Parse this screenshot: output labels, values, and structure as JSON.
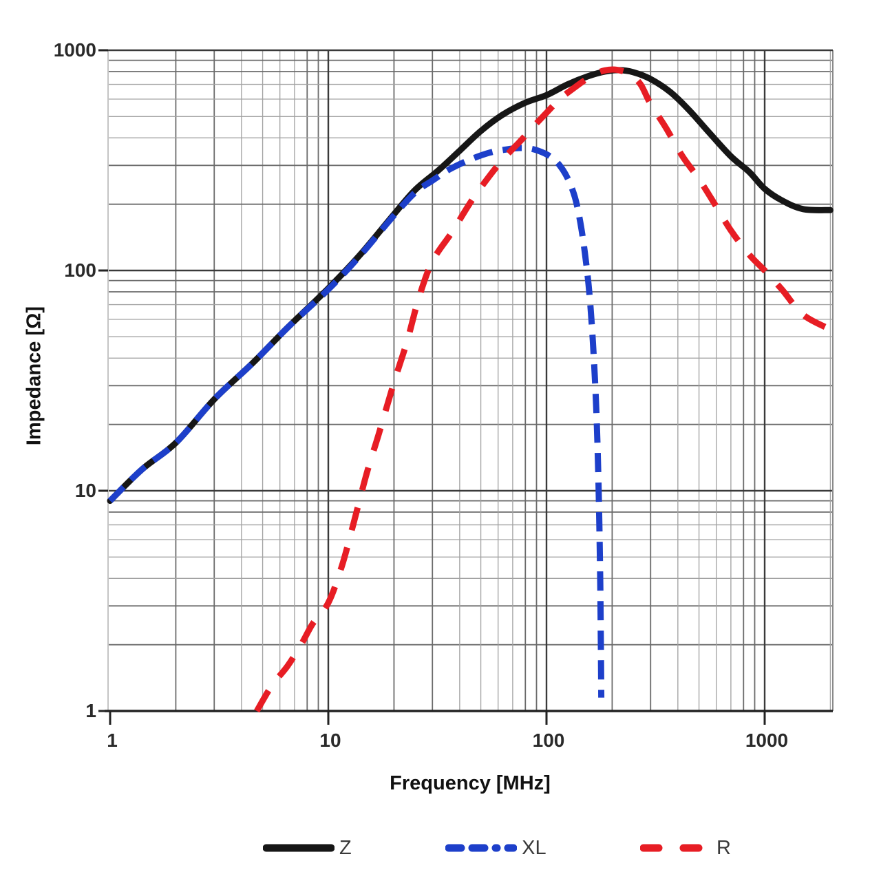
{
  "page": {
    "background": "#ffffff"
  },
  "chart_data": {
    "type": "line",
    "title": "",
    "xlabel": "Frequency [MHz]",
    "ylabel": "Impedance [Ω]",
    "x_scale": "log",
    "y_scale": "log",
    "xlim": [
      1,
      2000
    ],
    "ylim": [
      1,
      1000
    ],
    "grid": {
      "major": true,
      "minor": true
    },
    "legend_position": "bottom",
    "x_ticks": [
      {
        "value": 1,
        "label": "1"
      },
      {
        "value": 10,
        "label": "10"
      },
      {
        "value": 100,
        "label": "100"
      },
      {
        "value": 1000,
        "label": "1000"
      }
    ],
    "y_ticks": [
      {
        "value": 1,
        "label": "1"
      },
      {
        "value": 10,
        "label": "10"
      },
      {
        "value": 100,
        "label": "100"
      },
      {
        "value": 1000,
        "label": "1000"
      }
    ],
    "series": [
      {
        "name": "Z",
        "color": "#161616",
        "line_style": "solid",
        "x": [
          1,
          1.4,
          2,
          3,
          4.5,
          6.5,
          10,
          14,
          20,
          25,
          32,
          40,
          50,
          63,
          80,
          100,
          125,
          155,
          185,
          215,
          250,
          300,
          370,
          450,
          560,
          700,
          850,
          1000,
          1200,
          1500,
          2000
        ],
        "y": [
          9,
          12.5,
          16.5,
          26,
          38,
          55,
          83,
          118,
          180,
          232,
          285,
          350,
          430,
          510,
          578,
          625,
          700,
          762,
          800,
          812,
          795,
          740,
          645,
          535,
          420,
          330,
          280,
          235,
          208,
          190,
          188
        ]
      },
      {
        "name": "XL",
        "color": "#1d3fca",
        "line_style": "dashed",
        "x": [
          1,
          1.4,
          2,
          3,
          4.5,
          6.5,
          10,
          14,
          20,
          25,
          30,
          36,
          45,
          55,
          65,
          75,
          85,
          95,
          105,
          115,
          125,
          135,
          143,
          150,
          157,
          163,
          169,
          173,
          176,
          177.5,
          178.3
        ],
        "y": [
          9,
          12.5,
          16.5,
          26,
          38,
          55,
          82,
          117,
          178,
          226,
          256,
          288,
          320,
          343,
          354,
          360,
          357,
          345,
          327,
          300,
          262,
          215,
          165,
          120,
          80,
          48,
          24,
          11,
          4.5,
          2,
          1.15
        ]
      },
      {
        "name": "R",
        "color": "#e71d24",
        "line_style": "dashed",
        "x": [
          4.7,
          5.5,
          6.5,
          7.5,
          8.5,
          10,
          11.5,
          13,
          15,
          17,
          20,
          23,
          26,
          30,
          37,
          45,
          55,
          65,
          75,
          88,
          100,
          115,
          130,
          148,
          165,
          185,
          210,
          240,
          270,
          300,
          350,
          420,
          500,
          600,
          700,
          850,
          1000,
          1200,
          1500,
          2000
        ],
        "y": [
          1,
          1.3,
          1.6,
          2,
          2.5,
          3.1,
          4.5,
          7,
          12,
          18,
          31,
          48,
          75,
          110,
          150,
          205,
          270,
          330,
          382,
          455,
          520,
          600,
          660,
          725,
          775,
          810,
          815,
          780,
          700,
          570,
          450,
          330,
          260,
          195,
          152,
          118,
          100,
          82,
          63,
          54
        ]
      }
    ]
  }
}
